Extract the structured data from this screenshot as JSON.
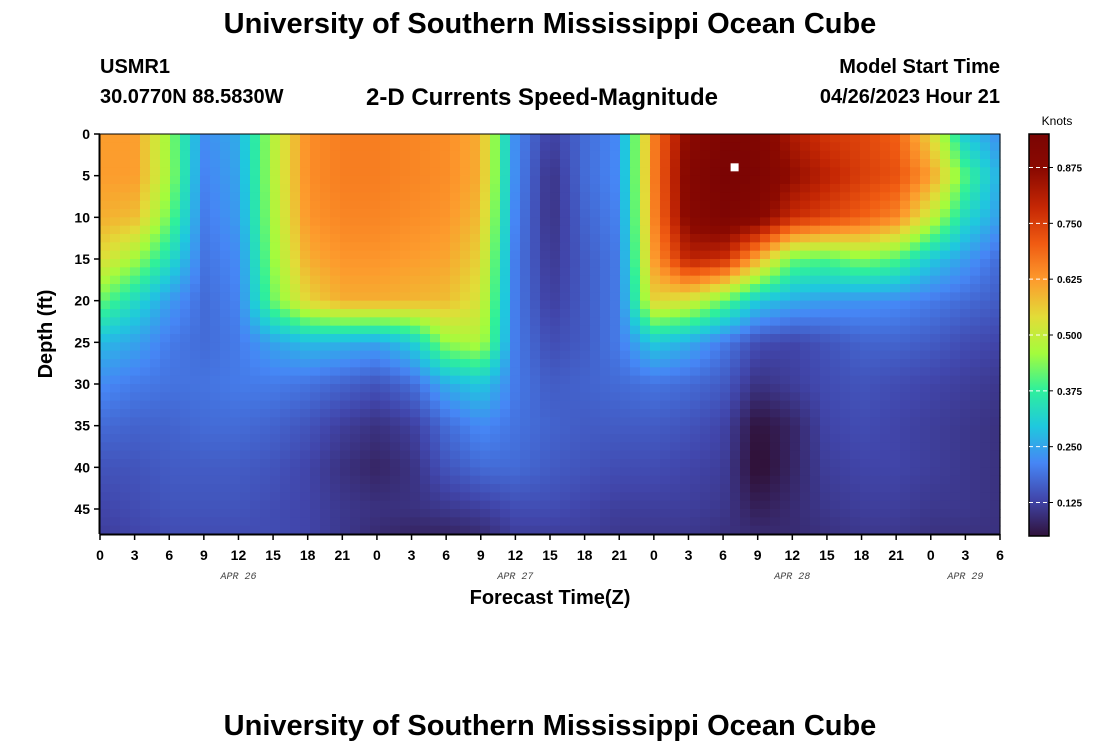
{
  "header": {
    "title": "University of Southern Mississippi Ocean Cube",
    "station": "USMR1",
    "coords": "30.0770N  88.5830W",
    "subtitle": "2-D Currents Speed-Magnitude",
    "start_label": "Model Start Time",
    "start_value": "04/26/2023 Hour 21"
  },
  "footer": {
    "title": "University of Southern Mississippi Ocean Cube"
  },
  "chart_data": {
    "type": "heatmap",
    "title": "2-D Currents Speed-Magnitude",
    "xlabel": "Forecast Time(Z)",
    "ylabel": "Depth (ft)",
    "x_ticks": [
      "0",
      "3",
      "6",
      "9",
      "12",
      "15",
      "18",
      "21",
      "0",
      "3",
      "6",
      "9",
      "12",
      "15",
      "18",
      "21",
      "0",
      "3",
      "6",
      "9",
      "12",
      "15",
      "18",
      "21",
      "0",
      "3",
      "6"
    ],
    "x_range_hours": [
      0,
      78
    ],
    "x_day_labels": [
      {
        "hour": 12,
        "text": "APR 26"
      },
      {
        "hour": 36,
        "text": "APR 27"
      },
      {
        "hour": 60,
        "text": "APR 28"
      },
      {
        "hour": 75,
        "text": "APR 29"
      }
    ],
    "y_ticks": [
      0,
      5,
      10,
      15,
      20,
      25,
      30,
      35,
      40,
      45
    ],
    "y_range": [
      0,
      48
    ],
    "y_inverted": true,
    "colorbar": {
      "label": "Knots",
      "range": [
        0.05,
        0.95
      ],
      "ticks": [
        0.125,
        0.25,
        0.375,
        0.5,
        0.625,
        0.75,
        0.875
      ],
      "tick_labels": [
        "0.125",
        "0.250",
        "0.375",
        "0.500",
        "0.625",
        "0.750",
        "0.875"
      ],
      "colormap": [
        "#30123b",
        "#4146ab",
        "#4686f5",
        "#1fc8de",
        "#2ff09b",
        "#a4fc3c",
        "#e2dc38",
        "#fd9b2d",
        "#f05b12",
        "#c52704",
        "#8c0a01",
        "#7a0403"
      ]
    },
    "speed_field_knots": {
      "x_hours": [
        0,
        3,
        6,
        9,
        12,
        15,
        18,
        21,
        24,
        27,
        30,
        33,
        36,
        39,
        42,
        45,
        48,
        51,
        54,
        57,
        60,
        63,
        66,
        69,
        72,
        75,
        78
      ],
      "depths_ft": [
        0,
        5,
        10,
        15,
        20,
        25,
        30,
        35,
        40,
        45,
        48
      ],
      "values": [
        [
          0.62,
          0.62,
          0.45,
          0.22,
          0.26,
          0.48,
          0.64,
          0.66,
          0.66,
          0.65,
          0.64,
          0.6,
          0.22,
          0.12,
          0.18,
          0.22,
          0.66,
          0.88,
          0.93,
          0.92,
          0.82,
          0.76,
          0.74,
          0.7,
          0.55,
          0.3,
          0.22
        ],
        [
          0.62,
          0.62,
          0.46,
          0.21,
          0.25,
          0.48,
          0.64,
          0.66,
          0.66,
          0.65,
          0.64,
          0.6,
          0.22,
          0.1,
          0.18,
          0.22,
          0.66,
          0.9,
          0.95,
          0.93,
          0.86,
          0.8,
          0.75,
          0.72,
          0.62,
          0.4,
          0.26
        ],
        [
          0.6,
          0.58,
          0.42,
          0.2,
          0.24,
          0.47,
          0.63,
          0.65,
          0.65,
          0.64,
          0.63,
          0.58,
          0.21,
          0.1,
          0.17,
          0.21,
          0.65,
          0.89,
          0.93,
          0.9,
          0.78,
          0.74,
          0.7,
          0.65,
          0.5,
          0.33,
          0.24
        ],
        [
          0.54,
          0.46,
          0.34,
          0.19,
          0.22,
          0.45,
          0.6,
          0.63,
          0.63,
          0.62,
          0.61,
          0.55,
          0.2,
          0.11,
          0.16,
          0.2,
          0.62,
          0.8,
          0.78,
          0.6,
          0.42,
          0.4,
          0.44,
          0.4,
          0.3,
          0.24,
          0.18
        ],
        [
          0.42,
          0.33,
          0.24,
          0.18,
          0.21,
          0.42,
          0.55,
          0.6,
          0.6,
          0.59,
          0.58,
          0.52,
          0.2,
          0.12,
          0.16,
          0.2,
          0.55,
          0.52,
          0.42,
          0.3,
          0.26,
          0.24,
          0.23,
          0.22,
          0.2,
          0.18,
          0.16
        ],
        [
          0.28,
          0.25,
          0.2,
          0.18,
          0.2,
          0.25,
          0.28,
          0.27,
          0.25,
          0.3,
          0.45,
          0.48,
          0.2,
          0.14,
          0.16,
          0.2,
          0.3,
          0.26,
          0.2,
          0.14,
          0.13,
          0.15,
          0.17,
          0.17,
          0.16,
          0.14,
          0.13
        ],
        [
          0.22,
          0.2,
          0.19,
          0.19,
          0.2,
          0.2,
          0.19,
          0.17,
          0.15,
          0.18,
          0.26,
          0.3,
          0.2,
          0.16,
          0.17,
          0.18,
          0.19,
          0.18,
          0.16,
          0.1,
          0.12,
          0.14,
          0.15,
          0.14,
          0.13,
          0.12,
          0.11
        ],
        [
          0.18,
          0.17,
          0.17,
          0.18,
          0.18,
          0.17,
          0.15,
          0.12,
          0.1,
          0.12,
          0.18,
          0.22,
          0.19,
          0.17,
          0.16,
          0.16,
          0.16,
          0.15,
          0.13,
          0.05,
          0.08,
          0.13,
          0.14,
          0.13,
          0.12,
          0.11,
          0.1
        ],
        [
          0.15,
          0.15,
          0.16,
          0.16,
          0.16,
          0.15,
          0.13,
          0.1,
          0.08,
          0.1,
          0.15,
          0.18,
          0.18,
          0.16,
          0.15,
          0.14,
          0.14,
          0.13,
          0.12,
          0.04,
          0.08,
          0.12,
          0.13,
          0.13,
          0.12,
          0.11,
          0.1
        ],
        [
          0.13,
          0.14,
          0.15,
          0.15,
          0.15,
          0.14,
          0.13,
          0.11,
          0.1,
          0.1,
          0.11,
          0.12,
          0.14,
          0.14,
          0.13,
          0.12,
          0.12,
          0.12,
          0.11,
          0.07,
          0.09,
          0.11,
          0.12,
          0.12,
          0.11,
          0.11,
          0.1
        ],
        [
          0.12,
          0.13,
          0.14,
          0.14,
          0.14,
          0.14,
          0.13,
          0.11,
          0.09,
          0.08,
          0.08,
          0.09,
          0.12,
          0.12,
          0.12,
          0.11,
          0.11,
          0.11,
          0.1,
          0.09,
          0.09,
          0.1,
          0.11,
          0.11,
          0.1,
          0.1,
          0.1
        ]
      ]
    },
    "marker": {
      "x_hour": 55,
      "depth_ft": 4,
      "color": "#ffffff"
    },
    "grid": false,
    "legend": "colorbar-right"
  }
}
